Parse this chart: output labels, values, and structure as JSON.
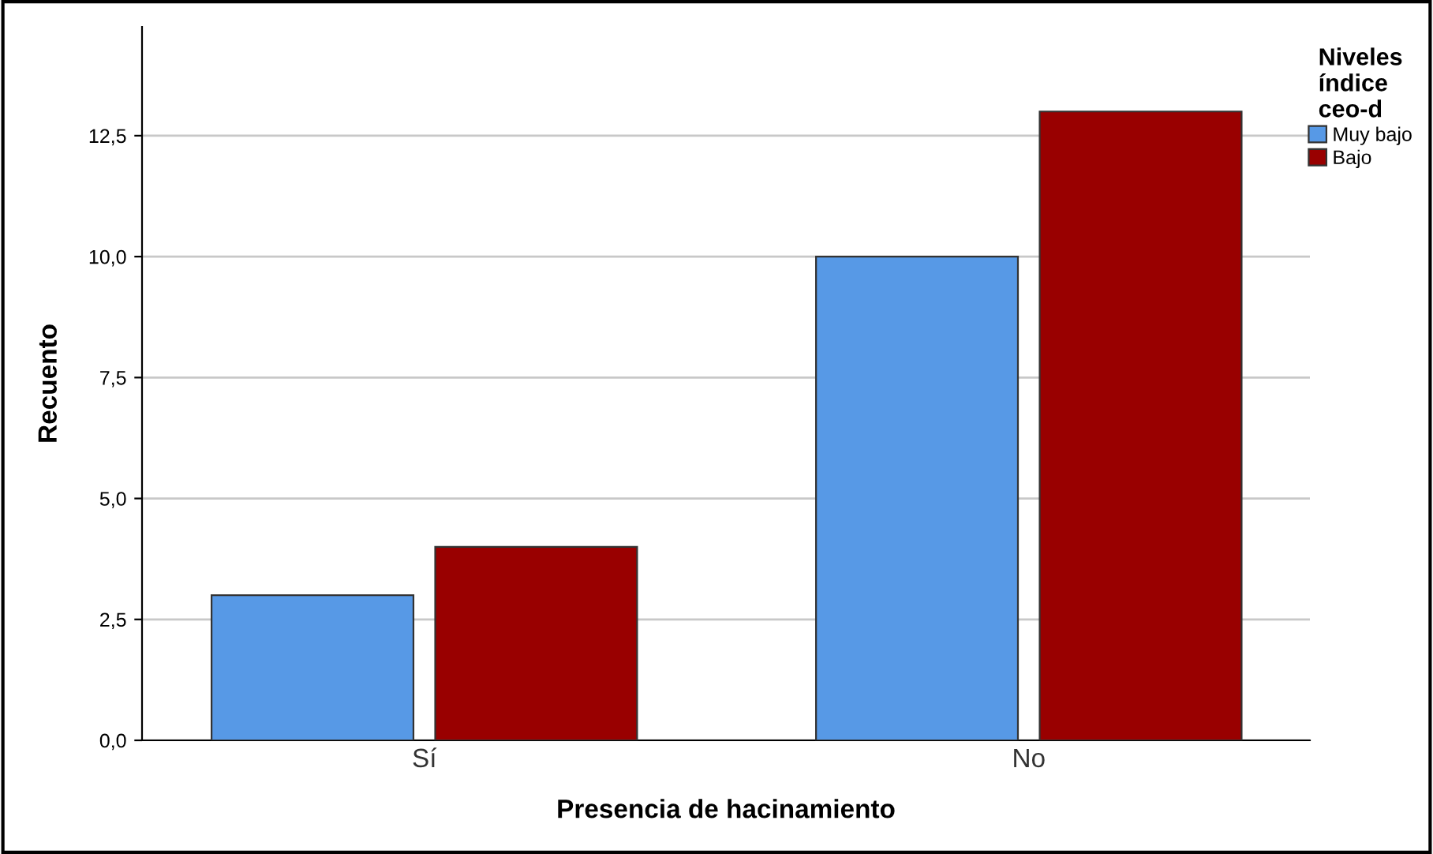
{
  "chart_data": {
    "type": "bar",
    "xlabel": "Presencia de hacinamiento",
    "ylabel": "Recuento",
    "legend_title": "Niveles\níndice\nceo-d",
    "categories": [
      "Sí",
      "No"
    ],
    "series": [
      {
        "name": "Muy bajo",
        "color": "#5799e6",
        "values": [
          3,
          10
        ]
      },
      {
        "name": "Bajo",
        "color": "#990000",
        "values": [
          4,
          13
        ]
      }
    ],
    "ylim": [
      0,
      14.75
    ],
    "yticks": [
      {
        "value": 0,
        "label": "0,0"
      },
      {
        "value": 2.5,
        "label": "2,5"
      },
      {
        "value": 5,
        "label": "5,0"
      },
      {
        "value": 7.5,
        "label": "7,5"
      },
      {
        "value": 10,
        "label": "10,0"
      },
      {
        "value": 12.5,
        "label": "12,5"
      }
    ],
    "grid": "y",
    "legend": "top right"
  }
}
